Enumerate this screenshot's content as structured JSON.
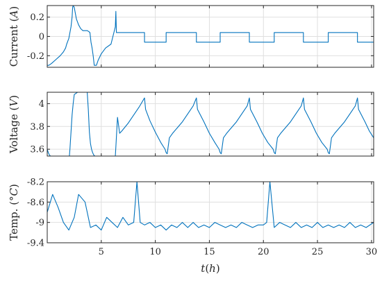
{
  "chart_data": [
    {
      "type": "line",
      "ylabel": "Current (A)",
      "ylabel_parts": [
        "Current (",
        "A",
        ")"
      ],
      "xlim": [
        0,
        30.2
      ],
      "ylim": [
        -0.32,
        0.32
      ],
      "yticks": [
        -0.2,
        0,
        0.2
      ],
      "ytick_labels": [
        "-0.2",
        "0",
        "0.2"
      ],
      "xticks": [
        5,
        10,
        15,
        20,
        25,
        30
      ],
      "grid": true,
      "color": "#0072BD",
      "series": [
        {
          "x": [
            0,
            0.15,
            0.15,
            0.4,
            0.8,
            1.2,
            1.5,
            1.7,
            1.8,
            2.0,
            2.1,
            2.2,
            2.3,
            2.35,
            2.4,
            2.5,
            2.7,
            2.9,
            3.1,
            3.3,
            3.5,
            3.7,
            3.85,
            3.95,
            4.05,
            4.15,
            4.25,
            4.35,
            4.45,
            4.5,
            4.55,
            4.7,
            5.0,
            5.4,
            5.9,
            6.3,
            6.35,
            6.4,
            6.6,
            6.6,
            9.0,
            9.0,
            11.0,
            11.0,
            13.8,
            13.8,
            16.0,
            16.0,
            18.7,
            18.7,
            21.0,
            21.0,
            23.7,
            23.7,
            26.0,
            26.0,
            28.7,
            28.7,
            30.2
          ],
          "y": [
            -0.3,
            -0.3,
            -0.3,
            -0.28,
            -0.24,
            -0.2,
            -0.16,
            -0.12,
            -0.08,
            -0.02,
            0.04,
            0.1,
            0.2,
            0.3,
            0.32,
            0.3,
            0.18,
            0.12,
            0.08,
            0.06,
            0.06,
            0.06,
            0.05,
            0.04,
            -0.06,
            -0.12,
            -0.2,
            -0.3,
            -0.3,
            -0.3,
            -0.3,
            -0.25,
            -0.18,
            -0.12,
            -0.08,
            0.1,
            0.26,
            0.04,
            0.04,
            0.04,
            0.04,
            -0.06,
            -0.06,
            0.04,
            0.04,
            -0.06,
            -0.06,
            0.04,
            0.04,
            -0.06,
            -0.06,
            0.04,
            0.04,
            -0.06,
            -0.06,
            0.04,
            0.04,
            -0.06,
            -0.06
          ]
        }
      ]
    },
    {
      "type": "line",
      "ylabel": "Voltage (V)",
      "ylabel_parts": [
        "Voltage (",
        "V",
        ")"
      ],
      "xlim": [
        0,
        30.2
      ],
      "ylim": [
        3.54,
        4.1
      ],
      "yticks": [
        3.6,
        3.8,
        4
      ],
      "ytick_labels": [
        "3.6",
        "3.8",
        "4"
      ],
      "xticks": [
        5,
        10,
        15,
        20,
        25,
        30
      ],
      "grid": true,
      "color": "#0072BD",
      "series": [
        {
          "x": [
            0,
            0.1,
            0.2,
            0.3,
            0.5,
            0.7,
            0.9,
            1.0,
            1.1,
            1.3,
            1.5,
            1.6,
            1.7,
            1.9,
            2.05,
            2.1,
            2.2,
            2.3,
            2.4,
            2.5,
            2.8,
            3.2,
            3.5,
            3.7,
            3.8,
            3.9,
            4.0,
            4.1,
            4.2,
            4.3,
            4.4,
            6.3,
            6.35,
            6.5,
            6.7,
            6.9,
            7.5,
            8.5,
            9.0,
            9.1,
            9.5,
            10.0,
            10.5,
            10.9,
            11.0,
            11.1,
            11.3,
            11.6,
            12.5,
            13.5,
            13.8,
            13.9,
            14.5,
            15.0,
            15.5,
            15.9,
            16.0,
            16.1,
            16.3,
            16.6,
            17.5,
            18.5,
            18.7,
            18.8,
            19.4,
            19.9,
            20.4,
            20.9,
            21.0,
            21.1,
            21.3,
            21.6,
            22.5,
            23.5,
            23.7,
            23.8,
            24.4,
            24.9,
            25.4,
            25.9,
            26.0,
            26.1,
            26.3,
            26.6,
            27.5,
            28.5,
            28.7,
            28.8,
            29.4,
            29.8,
            30.2
          ],
          "y": [
            3.6,
            3.57,
            3.55,
            3.54,
            3.54,
            3.54,
            3.54,
            3.54,
            3.54,
            3.54,
            3.54,
            3.54,
            3.54,
            3.54,
            3.54,
            3.6,
            3.75,
            3.9,
            4.0,
            4.08,
            4.1,
            4.1,
            4.1,
            4.1,
            3.95,
            3.75,
            3.65,
            3.6,
            3.57,
            3.55,
            3.54,
            3.54,
            3.62,
            3.88,
            3.74,
            3.76,
            3.83,
            3.97,
            4.05,
            3.95,
            3.85,
            3.75,
            3.66,
            3.6,
            3.57,
            3.56,
            3.7,
            3.74,
            3.84,
            3.98,
            4.05,
            3.95,
            3.84,
            3.74,
            3.66,
            3.6,
            3.57,
            3.56,
            3.7,
            3.74,
            3.84,
            3.98,
            4.05,
            3.95,
            3.84,
            3.74,
            3.66,
            3.6,
            3.57,
            3.56,
            3.7,
            3.74,
            3.84,
            3.98,
            4.05,
            3.95,
            3.84,
            3.74,
            3.66,
            3.6,
            3.57,
            3.56,
            3.7,
            3.74,
            3.84,
            3.98,
            4.05,
            3.95,
            3.84,
            3.76,
            3.7
          ]
        }
      ]
    },
    {
      "type": "line",
      "ylabel": "Temp. (°C)",
      "ylabel_parts": [
        "Temp. (",
        "°C",
        ")"
      ],
      "xlabel": "t(h)",
      "xlabel_parts": [
        "t",
        "(",
        "h",
        ")"
      ],
      "xlim": [
        0,
        30.2
      ],
      "ylim": [
        -9.4,
        -8.2
      ],
      "yticks": [
        -9.4,
        -9,
        -8.6,
        -8.2
      ],
      "ytick_labels": [
        "-9.4",
        "-9",
        "-8.6",
        "-8.2"
      ],
      "xticks": [
        5,
        10,
        15,
        20,
        25,
        30
      ],
      "xtick_labels": [
        "5",
        "10",
        "15",
        "20",
        "25",
        "30"
      ],
      "grid": true,
      "color": "#0072BD",
      "series": [
        {
          "x": [
            0,
            0.5,
            1.0,
            1.5,
            2.0,
            2.5,
            2.9,
            3.5,
            4.0,
            4.5,
            5.0,
            5.5,
            6.0,
            6.5,
            7.0,
            7.5,
            8.0,
            8.3,
            8.6,
            9.0,
            9.5,
            10.0,
            10.5,
            11.0,
            11.5,
            12.0,
            12.5,
            13.0,
            13.5,
            14.0,
            14.5,
            15.0,
            15.5,
            16.0,
            16.5,
            17.0,
            17.5,
            18.0,
            18.5,
            19.0,
            19.5,
            20.0,
            20.3,
            20.6,
            21.0,
            21.5,
            22.0,
            22.5,
            23.0,
            23.5,
            24.0,
            24.5,
            25.0,
            25.5,
            26.0,
            26.5,
            27.0,
            27.5,
            28.0,
            28.5,
            29.0,
            29.5,
            30.2
          ],
          "y": [
            -8.8,
            -8.45,
            -8.7,
            -9.0,
            -9.15,
            -8.9,
            -8.45,
            -8.6,
            -9.1,
            -9.05,
            -9.15,
            -8.9,
            -9.0,
            -9.1,
            -8.9,
            -9.05,
            -9.0,
            -8.2,
            -9.0,
            -9.05,
            -9.0,
            -9.1,
            -9.05,
            -9.15,
            -9.05,
            -9.1,
            -9.0,
            -9.1,
            -9.0,
            -9.1,
            -9.05,
            -9.1,
            -9.0,
            -9.05,
            -9.1,
            -9.05,
            -9.1,
            -9.0,
            -9.05,
            -9.1,
            -9.05,
            -9.05,
            -9.0,
            -8.2,
            -9.1,
            -9.0,
            -9.05,
            -9.1,
            -9.0,
            -9.1,
            -9.05,
            -9.1,
            -9.0,
            -9.1,
            -9.05,
            -9.1,
            -9.05,
            -9.1,
            -9.0,
            -9.1,
            -9.05,
            -9.1,
            -9.0
          ]
        }
      ]
    }
  ]
}
